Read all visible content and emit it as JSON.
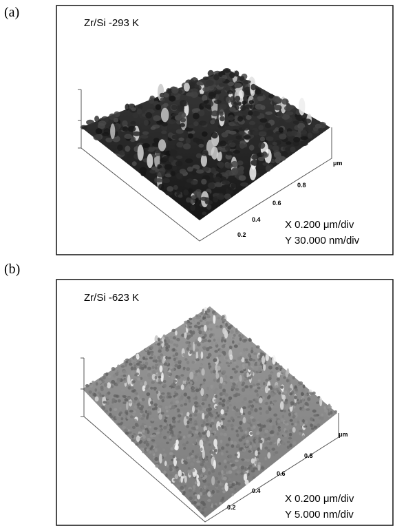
{
  "panels": [
    {
      "label": "(a)",
      "title": "Zr/Si -293 K",
      "scale_x": "X   0.200 μm/div",
      "scale_y": "Y 30.000 nm/div",
      "axis_ticks": [
        "0.2",
        "0.4",
        "0.6",
        "0.8"
      ],
      "axis_unit": "μm"
    },
    {
      "label": "(b)",
      "title": "Zr/Si -623 K",
      "scale_x": "X 0.200 μm/div",
      "scale_y": "Y 5.000 nm/div",
      "axis_ticks": [
        "0.2",
        "0.4",
        "0.6",
        "0.8"
      ],
      "axis_unit": "μm"
    }
  ]
}
